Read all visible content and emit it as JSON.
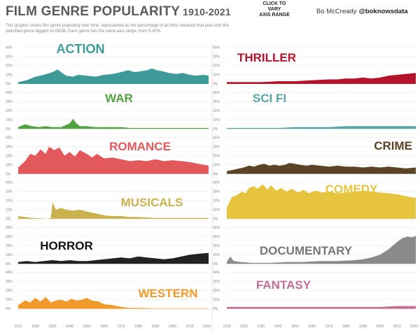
{
  "header": {
    "title": "FILM GENRE POPULARITY",
    "years": "1910-2021",
    "subtitle": "This graphic shows film genre popularity over time, represented as the percentage of all films released that year with the specified genre tagged on IMDB. Each genre has the same axis range, from 0-40%.",
    "click_note": "CLICK TO\nVARY\nAXIS RANGE",
    "author": "Bo McCready",
    "handle": "@boknowsdata"
  },
  "chart_data": {
    "type": "area",
    "x_ticks": [
      1910,
      1920,
      1930,
      1940,
      1950,
      1960,
      1970,
      1980,
      1990,
      2000,
      2010,
      2020
    ],
    "xlim": [
      1910,
      2021
    ],
    "y_ticks": [
      "40%",
      "30%",
      "20%",
      "10%",
      "0%"
    ],
    "ylim": [
      0,
      40
    ],
    "left_column": [
      {
        "name": "ACTION",
        "color": "#3e9a98",
        "label_color": "#3e9a98",
        "points": [
          [
            1910,
            2
          ],
          [
            1915,
            4
          ],
          [
            1920,
            8
          ],
          [
            1925,
            10
          ],
          [
            1930,
            13
          ],
          [
            1933,
            16
          ],
          [
            1935,
            13
          ],
          [
            1938,
            9
          ],
          [
            1942,
            8
          ],
          [
            1945,
            10
          ],
          [
            1950,
            9
          ],
          [
            1955,
            8
          ],
          [
            1960,
            10
          ],
          [
            1965,
            11
          ],
          [
            1970,
            13
          ],
          [
            1974,
            15
          ],
          [
            1978,
            13
          ],
          [
            1982,
            14
          ],
          [
            1985,
            15
          ],
          [
            1988,
            17
          ],
          [
            1991,
            15
          ],
          [
            1994,
            14
          ],
          [
            1998,
            12
          ],
          [
            2002,
            11
          ],
          [
            2006,
            12
          ],
          [
            2010,
            10
          ],
          [
            2014,
            9
          ],
          [
            2018,
            10
          ],
          [
            2021,
            9
          ]
        ]
      },
      {
        "name": "WAR",
        "color": "#52a242",
        "label_color": "#52a242",
        "points": [
          [
            1910,
            2
          ],
          [
            1914,
            5
          ],
          [
            1916,
            4
          ],
          [
            1918,
            3
          ],
          [
            1922,
            2
          ],
          [
            1926,
            3
          ],
          [
            1930,
            2
          ],
          [
            1935,
            2
          ],
          [
            1940,
            6
          ],
          [
            1942,
            11
          ],
          [
            1944,
            6
          ],
          [
            1946,
            3
          ],
          [
            1950,
            3
          ],
          [
            1955,
            2
          ],
          [
            1960,
            2
          ],
          [
            1965,
            2
          ],
          [
            1970,
            2
          ],
          [
            1975,
            1
          ],
          [
            1980,
            1
          ],
          [
            1990,
            1
          ],
          [
            2000,
            1
          ],
          [
            2010,
            1
          ],
          [
            2021,
            1
          ]
        ]
      },
      {
        "name": "ROMANCE",
        "color": "#e2585b",
        "label_color": "#e2585b",
        "points": [
          [
            1910,
            7
          ],
          [
            1914,
            14
          ],
          [
            1917,
            22
          ],
          [
            1920,
            20
          ],
          [
            1923,
            27
          ],
          [
            1926,
            22
          ],
          [
            1928,
            30
          ],
          [
            1931,
            26
          ],
          [
            1934,
            29
          ],
          [
            1937,
            20
          ],
          [
            1940,
            24
          ],
          [
            1943,
            19
          ],
          [
            1946,
            26
          ],
          [
            1950,
            22
          ],
          [
            1953,
            18
          ],
          [
            1956,
            22
          ],
          [
            1960,
            17
          ],
          [
            1965,
            18
          ],
          [
            1970,
            16
          ],
          [
            1975,
            14
          ],
          [
            1980,
            15
          ],
          [
            1985,
            14
          ],
          [
            1990,
            16
          ],
          [
            1995,
            14
          ],
          [
            2000,
            15
          ],
          [
            2005,
            14
          ],
          [
            2010,
            13
          ],
          [
            2015,
            11
          ],
          [
            2021,
            9
          ]
        ]
      },
      {
        "name": "MUSICALS",
        "color": "#c9b14e",
        "label_color": "#c9b14e",
        "points": [
          [
            1910,
            3
          ],
          [
            1914,
            2
          ],
          [
            1918,
            1
          ],
          [
            1927,
            0
          ],
          [
            1929,
            1
          ],
          [
            1930,
            18
          ],
          [
            1932,
            10
          ],
          [
            1935,
            12
          ],
          [
            1938,
            10
          ],
          [
            1942,
            9
          ],
          [
            1946,
            10
          ],
          [
            1950,
            8
          ],
          [
            1955,
            6
          ],
          [
            1960,
            4
          ],
          [
            1965,
            3
          ],
          [
            1970,
            3
          ],
          [
            1975,
            2
          ],
          [
            1980,
            2
          ],
          [
            1990,
            1
          ],
          [
            2000,
            1
          ],
          [
            2010,
            1
          ],
          [
            2021,
            1
          ]
        ]
      },
      {
        "name": "HORROR",
        "color": "#222222",
        "label_color": "#111111",
        "points": [
          [
            1910,
            2
          ],
          [
            1915,
            3
          ],
          [
            1920,
            2
          ],
          [
            1925,
            3
          ],
          [
            1930,
            4
          ],
          [
            1935,
            3
          ],
          [
            1940,
            4
          ],
          [
            1945,
            3
          ],
          [
            1950,
            3
          ],
          [
            1955,
            4
          ],
          [
            1960,
            5
          ],
          [
            1965,
            6
          ],
          [
            1970,
            7
          ],
          [
            1975,
            6
          ],
          [
            1980,
            8
          ],
          [
            1985,
            7
          ],
          [
            1990,
            6
          ],
          [
            1995,
            5
          ],
          [
            2000,
            6
          ],
          [
            2005,
            8
          ],
          [
            2010,
            10
          ],
          [
            2015,
            11
          ],
          [
            2021,
            12
          ]
        ]
      },
      {
        "name": "WESTERN",
        "color": "#ef9a2a",
        "label_color": "#ef9a2a",
        "points": [
          [
            1910,
            4
          ],
          [
            1914,
            9
          ],
          [
            1917,
            7
          ],
          [
            1920,
            12
          ],
          [
            1923,
            8
          ],
          [
            1926,
            13
          ],
          [
            1929,
            7
          ],
          [
            1932,
            9
          ],
          [
            1935,
            10
          ],
          [
            1938,
            8
          ],
          [
            1941,
            11
          ],
          [
            1944,
            9
          ],
          [
            1947,
            10
          ],
          [
            1950,
            12
          ],
          [
            1953,
            9
          ],
          [
            1957,
            8
          ],
          [
            1960,
            5
          ],
          [
            1965,
            4
          ],
          [
            1970,
            2
          ],
          [
            1975,
            1
          ],
          [
            1980,
            1
          ],
          [
            1990,
            0.5
          ],
          [
            2000,
            0.5
          ],
          [
            2010,
            0.5
          ],
          [
            2021,
            0.5
          ]
        ]
      }
    ],
    "right_column": [
      {
        "name": "THRILLER",
        "color": "#b5142d",
        "label_color": "#b5142d",
        "points": [
          [
            1910,
            2
          ],
          [
            1920,
            2
          ],
          [
            1930,
            2
          ],
          [
            1940,
            3
          ],
          [
            1950,
            3
          ],
          [
            1960,
            4
          ],
          [
            1970,
            5
          ],
          [
            1975,
            5
          ],
          [
            1980,
            6
          ],
          [
            1985,
            6
          ],
          [
            1990,
            7
          ],
          [
            1995,
            6
          ],
          [
            2000,
            7
          ],
          [
            2005,
            9
          ],
          [
            2010,
            10
          ],
          [
            2015,
            11
          ],
          [
            2021,
            12
          ]
        ]
      },
      {
        "name": "SCI FI",
        "color": "#5aa3a3",
        "label_color": "#5aa3a3",
        "points": [
          [
            1910,
            1
          ],
          [
            1920,
            1
          ],
          [
            1930,
            1
          ],
          [
            1940,
            1
          ],
          [
            1950,
            2
          ],
          [
            1960,
            2
          ],
          [
            1970,
            2
          ],
          [
            1980,
            3
          ],
          [
            1990,
            3
          ],
          [
            2000,
            3
          ],
          [
            2010,
            3
          ],
          [
            2021,
            3
          ]
        ]
      },
      {
        "name": "CRIME",
        "color": "#5a4425",
        "label_color": "#5a4425",
        "points": [
          [
            1910,
            3
          ],
          [
            1915,
            5
          ],
          [
            1920,
            7
          ],
          [
            1923,
            9
          ],
          [
            1926,
            8
          ],
          [
            1929,
            10
          ],
          [
            1932,
            11
          ],
          [
            1935,
            9
          ],
          [
            1938,
            10
          ],
          [
            1941,
            9
          ],
          [
            1944,
            10
          ],
          [
            1947,
            12
          ],
          [
            1950,
            11
          ],
          [
            1953,
            10
          ],
          [
            1957,
            9
          ],
          [
            1960,
            10
          ],
          [
            1965,
            9
          ],
          [
            1970,
            8
          ],
          [
            1975,
            9
          ],
          [
            1980,
            8
          ],
          [
            1985,
            8
          ],
          [
            1990,
            7
          ],
          [
            1995,
            8
          ],
          [
            2000,
            7
          ],
          [
            2005,
            8
          ],
          [
            2010,
            7
          ],
          [
            2015,
            6
          ],
          [
            2021,
            7
          ]
        ]
      },
      {
        "name": "COMEDY",
        "color": "#e7c43e",
        "label_color": "#e7c43e",
        "points": [
          [
            1910,
            12
          ],
          [
            1913,
            24
          ],
          [
            1916,
            26
          ],
          [
            1919,
            30
          ],
          [
            1921,
            28
          ],
          [
            1923,
            34
          ],
          [
            1926,
            36
          ],
          [
            1928,
            33
          ],
          [
            1931,
            38
          ],
          [
            1934,
            32
          ],
          [
            1936,
            37
          ],
          [
            1939,
            31
          ],
          [
            1942,
            34
          ],
          [
            1945,
            30
          ],
          [
            1948,
            33
          ],
          [
            1952,
            29
          ],
          [
            1955,
            32
          ],
          [
            1958,
            28
          ],
          [
            1962,
            31
          ],
          [
            1966,
            29
          ],
          [
            1970,
            30
          ],
          [
            1975,
            28
          ],
          [
            1980,
            29
          ],
          [
            1985,
            30
          ],
          [
            1990,
            31
          ],
          [
            1995,
            30
          ],
          [
            2000,
            29
          ],
          [
            2005,
            28
          ],
          [
            2010,
            27
          ],
          [
            2015,
            25
          ],
          [
            2021,
            23
          ]
        ]
      },
      {
        "name": "DOCUMENTARY",
        "color": "#8a8a8a",
        "label_color": "#777777",
        "points": [
          [
            1910,
            2
          ],
          [
            1912,
            8
          ],
          [
            1914,
            3
          ],
          [
            1918,
            2
          ],
          [
            1925,
            1
          ],
          [
            1935,
            1
          ],
          [
            1945,
            2
          ],
          [
            1955,
            2
          ],
          [
            1965,
            3
          ],
          [
            1975,
            3
          ],
          [
            1985,
            4
          ],
          [
            1990,
            5
          ],
          [
            1995,
            7
          ],
          [
            2000,
            10
          ],
          [
            2005,
            16
          ],
          [
            2010,
            24
          ],
          [
            2013,
            28
          ],
          [
            2016,
            30
          ],
          [
            2019,
            29
          ],
          [
            2021,
            31
          ]
        ]
      },
      {
        "name": "FANTASY",
        "color": "#c36f92",
        "label_color": "#c36f92",
        "points": [
          [
            1910,
            2
          ],
          [
            1920,
            2
          ],
          [
            1930,
            2
          ],
          [
            1940,
            2
          ],
          [
            1950,
            2
          ],
          [
            1960,
            2
          ],
          [
            1970,
            2
          ],
          [
            1980,
            2
          ],
          [
            1990,
            2
          ],
          [
            2000,
            2
          ],
          [
            2010,
            3
          ],
          [
            2021,
            3
          ]
        ]
      }
    ]
  }
}
